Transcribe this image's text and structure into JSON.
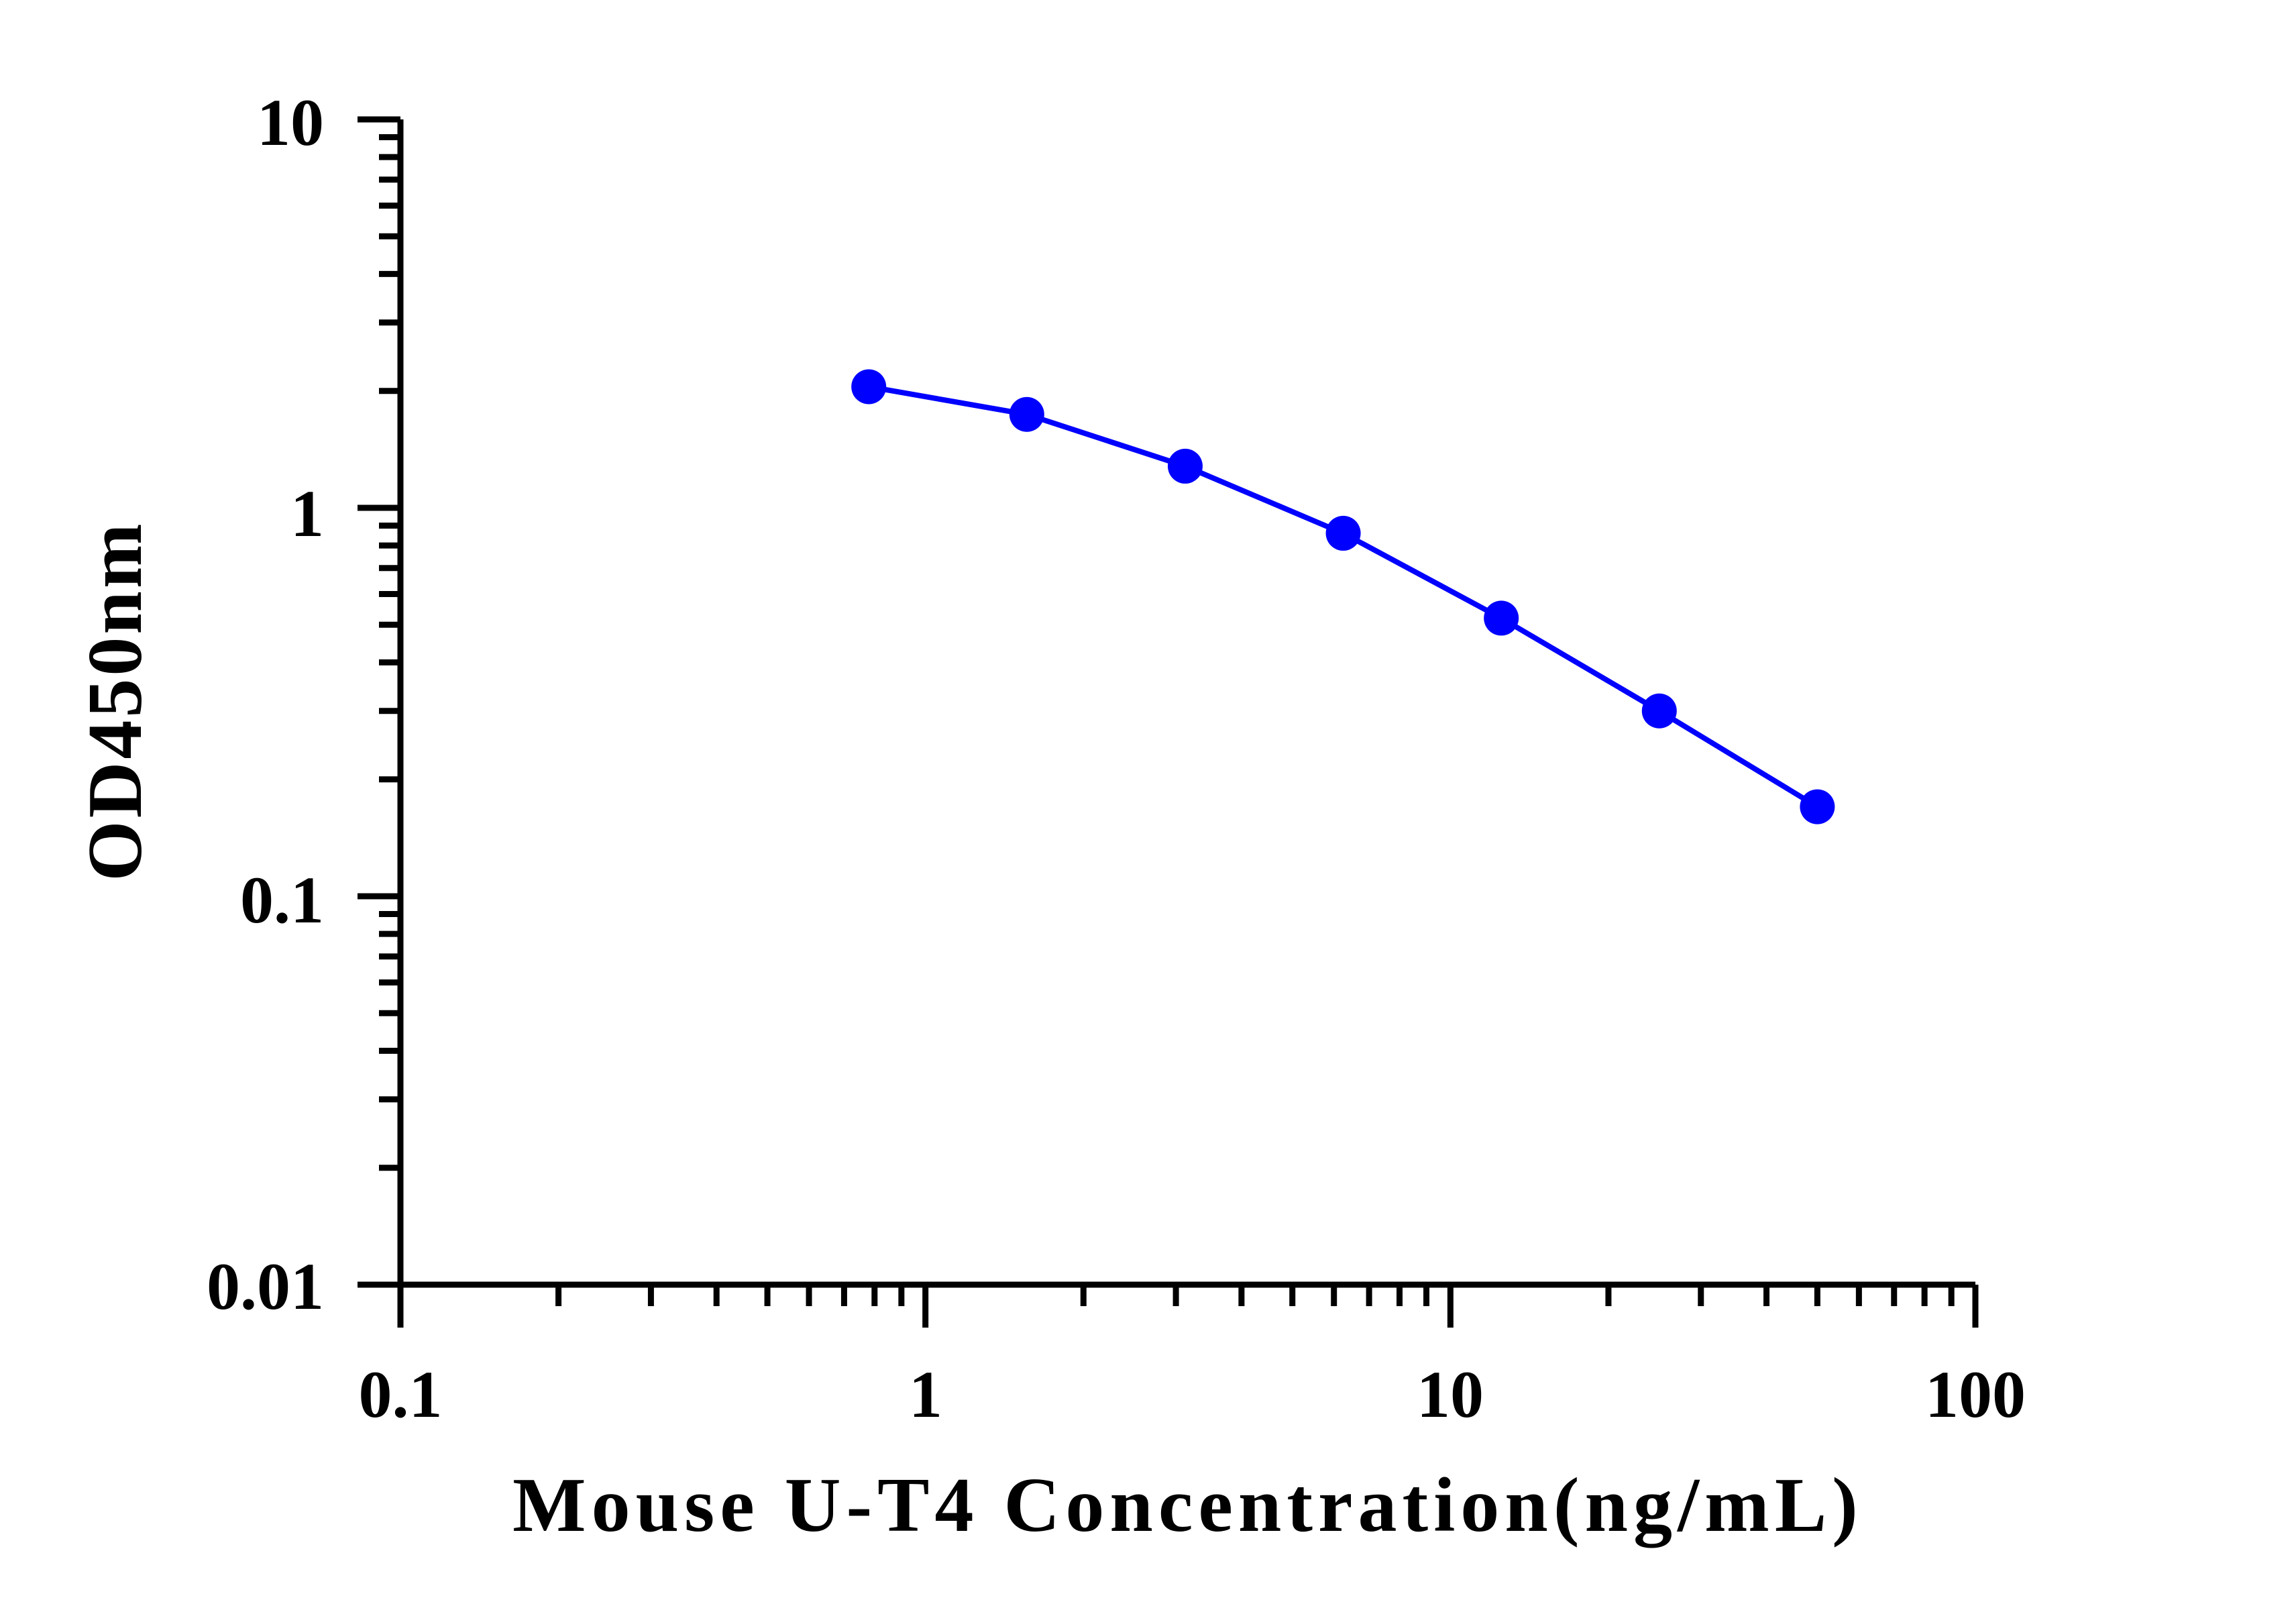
{
  "chart_data": {
    "type": "line",
    "title": "",
    "xlabel": "Mouse U-T4 Concentration(ng/mL)",
    "ylabel": "OD450nm",
    "xscale": "log",
    "yscale": "log",
    "xlim": [
      0.1,
      100
    ],
    "ylim": [
      0.01,
      10
    ],
    "x_tick_labels": [
      "0.1",
      "1",
      "10",
      "100"
    ],
    "y_tick_labels": [
      "0.01",
      "0.1",
      "1",
      "10"
    ],
    "grid": false,
    "legend": "none",
    "series": [
      {
        "x": [
          0.78,
          1.56,
          3.125,
          6.25,
          12.5,
          25,
          50
        ],
        "y": [
          2.05,
          1.74,
          1.28,
          0.86,
          0.52,
          0.3,
          0.17
        ],
        "color": "#0000ff",
        "marker": "circle"
      }
    ]
  }
}
